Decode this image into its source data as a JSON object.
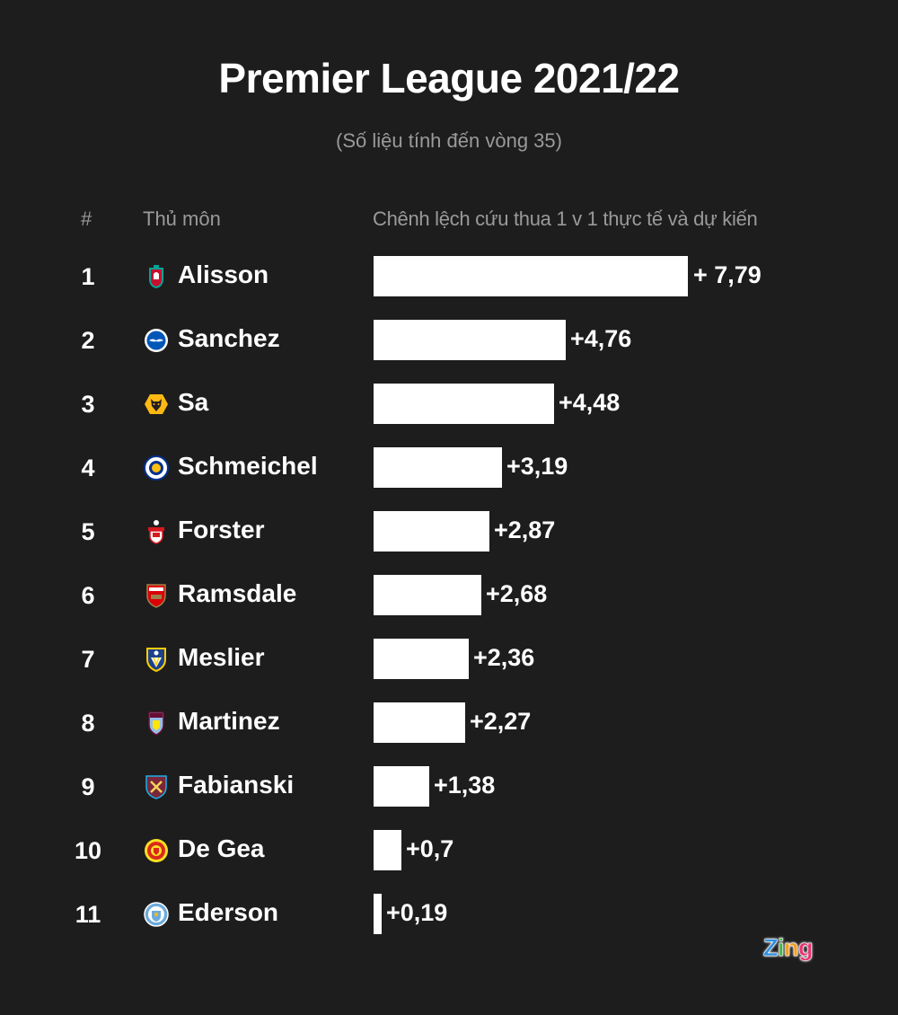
{
  "header": {
    "title": "Premier League 2021/22",
    "subtitle": "(Số liệu tính đến vòng 35)"
  },
  "columns": {
    "rank": "#",
    "player": "Thủ môn",
    "metric": "Chênh lệch cứu thua 1 v 1 thực tế và dự kiến"
  },
  "rows": [
    {
      "rank": "1",
      "name": "Alisson",
      "club_icon": "liverpool-crest-icon",
      "value": 7.79,
      "label": "+ 7,79"
    },
    {
      "rank": "2",
      "name": "Sanchez",
      "club_icon": "brighton-crest-icon",
      "value": 4.76,
      "label": "+4,76"
    },
    {
      "rank": "3",
      "name": "Sa",
      "club_icon": "wolves-crest-icon",
      "value": 4.48,
      "label": "+4,48"
    },
    {
      "rank": "4",
      "name": "Schmeichel",
      "club_icon": "leicester-crest-icon",
      "value": 3.19,
      "label": "+3,19"
    },
    {
      "rank": "5",
      "name": "Forster",
      "club_icon": "southampton-crest-icon",
      "value": 2.87,
      "label": "+2,87"
    },
    {
      "rank": "6",
      "name": "Ramsdale",
      "club_icon": "arsenal-crest-icon",
      "value": 2.68,
      "label": "+2,68"
    },
    {
      "rank": "7",
      "name": "Meslier",
      "club_icon": "leeds-crest-icon",
      "value": 2.36,
      "label": "+2,36"
    },
    {
      "rank": "8",
      "name": "Martinez",
      "club_icon": "aston-villa-crest-icon",
      "value": 2.27,
      "label": "+2,27"
    },
    {
      "rank": "9",
      "name": "Fabianski",
      "club_icon": "west-ham-crest-icon",
      "value": 1.38,
      "label": "+1,38"
    },
    {
      "rank": "10",
      "name": "De Gea",
      "club_icon": "man-united-crest-icon",
      "value": 0.7,
      "label": "+0,7"
    },
    {
      "rank": "11",
      "name": "Ederson",
      "club_icon": "man-city-crest-icon",
      "value": 0.19,
      "label": "+0,19"
    }
  ],
  "brand": {
    "logo_text": "Zing",
    "letters": [
      {
        "ch": "Z",
        "color": "#2b8fe0"
      },
      {
        "ch": "i",
        "color": "#45b649"
      },
      {
        "ch": "n",
        "color": "#f39c1f"
      },
      {
        "ch": "g",
        "color": "#e8336f"
      }
    ]
  },
  "colors": {
    "background": "#1d1d1d",
    "bar": "#ffffff",
    "text": "#ffffff",
    "muted_text": "#9a9a9a"
  },
  "chart_data": {
    "type": "bar",
    "orientation": "horizontal",
    "title": "Premier League 2021/22",
    "subtitle": "(Số liệu tính đến vòng 35)",
    "xlabel": "Chênh lệch cứu thua 1 v 1 thực tế và dự kiến",
    "ylabel": "Thủ môn",
    "categories": [
      "Alisson",
      "Sanchez",
      "Sa",
      "Schmeichel",
      "Forster",
      "Ramsdale",
      "Meslier",
      "Martinez",
      "Fabianski",
      "De Gea",
      "Ederson"
    ],
    "clubs": [
      "Liverpool",
      "Brighton",
      "Wolves",
      "Leicester",
      "Southampton",
      "Arsenal",
      "Leeds",
      "Aston Villa",
      "West Ham",
      "Man United",
      "Man City"
    ],
    "values": [
      7.79,
      4.76,
      4.48,
      3.19,
      2.87,
      2.68,
      2.36,
      2.27,
      1.38,
      0.7,
      0.19
    ],
    "value_labels": [
      "+ 7,79",
      "+4,76",
      "+4,48",
      "+3,19",
      "+2,87",
      "+2,68",
      "+2,36",
      "+2,27",
      "+1,38",
      "+0,7",
      "+0,19"
    ],
    "grid": false,
    "legend": null
  }
}
